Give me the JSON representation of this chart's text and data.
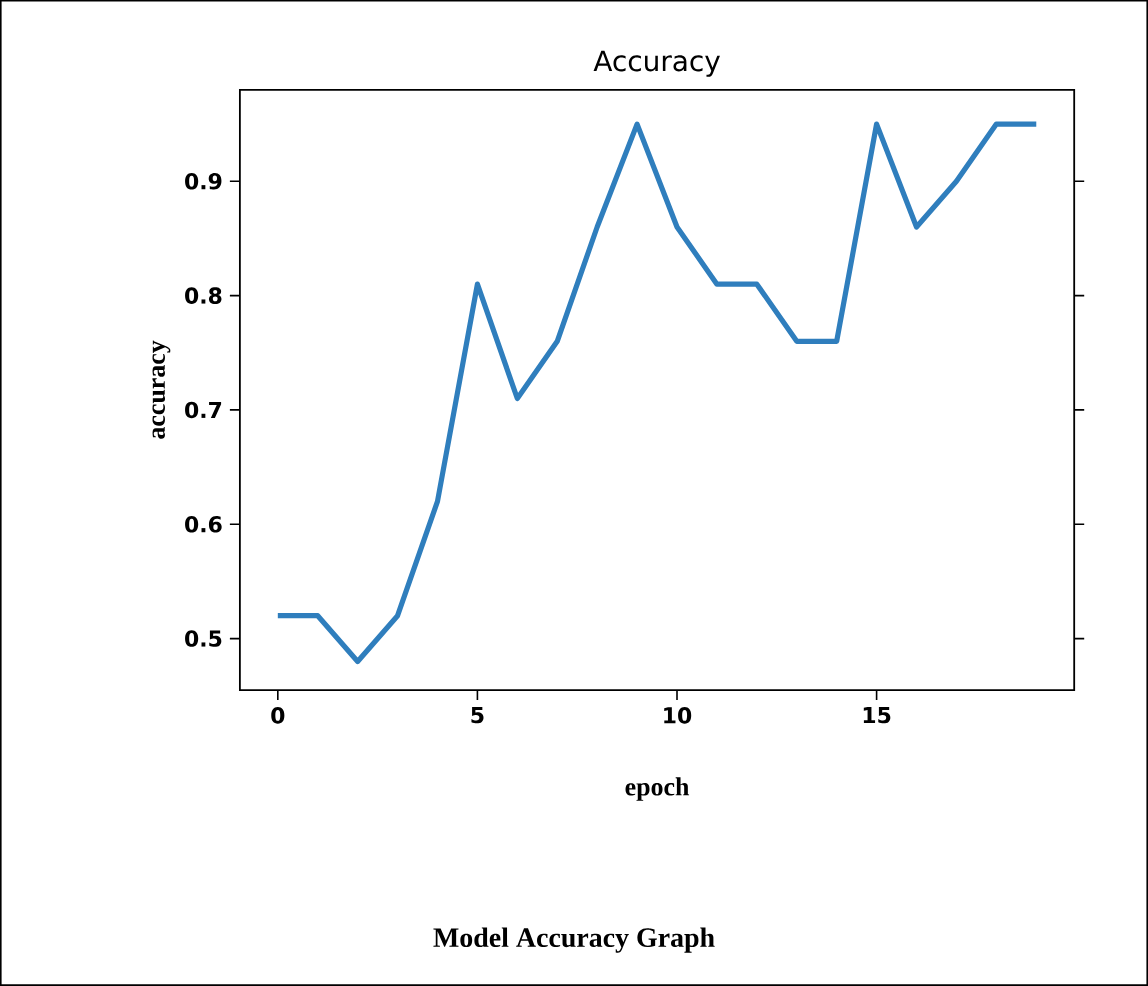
{
  "chart_data": {
    "type": "line",
    "title": "Accuracy",
    "xlabel": "epoch",
    "ylabel": "accuracy",
    "annotations": [
      "Model Accuracy Graph"
    ],
    "x": [
      0,
      1,
      2,
      3,
      4,
      5,
      6,
      7,
      8,
      9,
      10,
      11,
      12,
      13,
      14,
      15,
      16,
      17,
      18,
      19
    ],
    "series": [
      {
        "color": "#2f7ebd",
        "values": [
          0.52,
          0.52,
          0.48,
          0.52,
          0.62,
          0.81,
          0.71,
          0.76,
          0.86,
          0.95,
          0.86,
          0.81,
          0.81,
          0.76,
          0.76,
          0.95,
          0.86,
          0.9,
          0.95,
          0.95
        ]
      }
    ],
    "xlim": [
      -0.95,
      19.95
    ],
    "ylim": [
      0.455,
      0.98
    ],
    "xticks": [
      0,
      5,
      10,
      15
    ],
    "yticks": [
      0.5,
      0.6,
      0.7,
      0.8,
      0.9
    ],
    "grid": false,
    "marker": "none",
    "line_style": "solid"
  }
}
